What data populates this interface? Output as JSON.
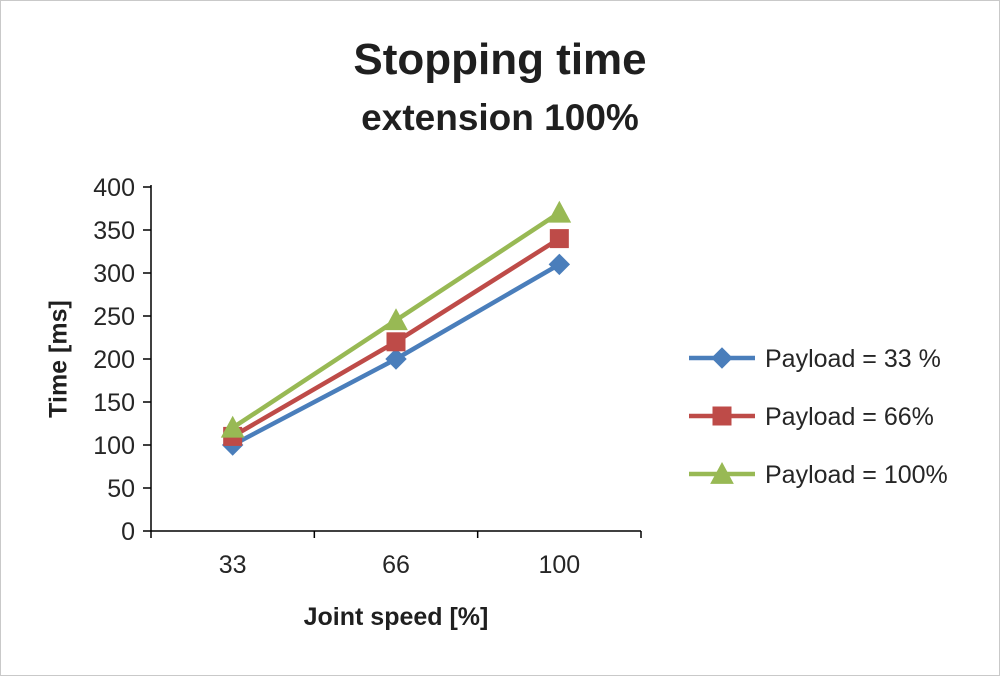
{
  "chart_data": {
    "type": "line",
    "title": "Stopping time",
    "subtitle": "extension 100%",
    "xlabel": "Joint speed [%]",
    "ylabel": "Time [ms]",
    "categories": [
      "33",
      "66",
      "100"
    ],
    "series": [
      {
        "name": "Payload = 33 %",
        "color": "#4a7ebb",
        "marker": "diamond",
        "values": [
          100,
          200,
          310
        ]
      },
      {
        "name": "Payload =  66%",
        "color": "#be4b48",
        "marker": "square",
        "values": [
          110,
          220,
          340
        ]
      },
      {
        "name": "Payload =  100%",
        "color": "#98b954",
        "marker": "triangle",
        "values": [
          120,
          245,
          370
        ]
      }
    ],
    "ylim": [
      0,
      400
    ],
    "ytick_step": 50,
    "grid": false,
    "legend_position": "right",
    "axis_color": "#000000"
  }
}
